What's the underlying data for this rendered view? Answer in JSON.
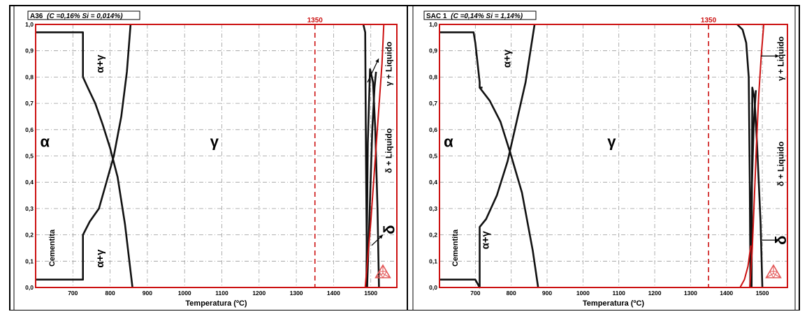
{
  "chart_data": [
    {
      "type": "line",
      "title": "A36",
      "title_detail": "(C =0,16% Si = 0,014%)",
      "xlabel": "Temperatura (ºC)",
      "ylabel": "",
      "xlim": [
        600,
        1570
      ],
      "ylim": [
        0,
        1.0
      ],
      "x_ticks": [
        700,
        800,
        900,
        1000,
        1100,
        1200,
        1300,
        1400,
        1500
      ],
      "y_ticks": [
        0,
        0.1,
        0.2,
        0.3,
        0.4,
        0.5,
        0.6,
        0.7,
        0.8,
        0.9,
        1.0
      ],
      "y_tick_labels": [
        "0,0",
        "0,1",
        "0,2",
        "0,3",
        "0,4",
        "0,5",
        "0,6",
        "0,7",
        "0,8",
        "0,9",
        "1,0"
      ],
      "grid": true,
      "marker_line": {
        "x": 1350,
        "label": "1350",
        "color": "#cc1111"
      },
      "labels": [
        {
          "text": "α",
          "x": 625,
          "y": 0.55,
          "size": 22,
          "rot": 0
        },
        {
          "text": "γ",
          "x": 1080,
          "y": 0.55,
          "size": 22,
          "rot": 0
        },
        {
          "text": "α+γ",
          "x": 775,
          "y": 0.85,
          "size": 15,
          "rot": -90
        },
        {
          "text": "α+γ",
          "x": 775,
          "y": 0.11,
          "size": 15,
          "rot": -90
        },
        {
          "text": "Cementita",
          "x": 645,
          "y": 0.15,
          "size": 11,
          "rot": -90
        },
        {
          "text": "δ",
          "x": 1553,
          "y": 0.22,
          "size": 22,
          "rot": -90
        },
        {
          "text": "δ + Liquido",
          "x": 1550,
          "y": 0.52,
          "size": 12,
          "rot": -90
        },
        {
          "text": "γ + Liquido",
          "x": 1550,
          "y": 0.85,
          "size": 12,
          "rot": -90
        }
      ],
      "series": [
        {
          "color": "#111111",
          "x": [
            600,
            727,
            727
          ],
          "y": [
            0.97,
            0.97,
            0.8
          ]
        },
        {
          "color": "#111111",
          "x": [
            727,
            740,
            760,
            780,
            800,
            820,
            840,
            860
          ],
          "y": [
            0.8,
            0.76,
            0.7,
            0.62,
            0.53,
            0.42,
            0.24,
            0.0
          ]
        },
        {
          "color": "#111111",
          "x": [
            600,
            727,
            727,
            745,
            770,
            790,
            810,
            830,
            845,
            855
          ],
          "y": [
            0.03,
            0.03,
            0.2,
            0.25,
            0.3,
            0.4,
            0.5,
            0.65,
            0.82,
            1.0
          ]
        },
        {
          "color": "#111111",
          "x": [
            1480,
            1485,
            1487,
            1490
          ],
          "y": [
            1.0,
            0.97,
            0.5,
            0.0
          ]
        },
        {
          "color": "#111111",
          "x": [
            1488,
            1492,
            1498,
            1506,
            1512,
            1518,
            1522
          ],
          "y": [
            0.0,
            0.55,
            0.83,
            0.78,
            0.6,
            0.3,
            0.0
          ]
        },
        {
          "color": "#111111",
          "x": [
            1490,
            1496,
            1504,
            1510,
            1514
          ],
          "y": [
            0.0,
            0.25,
            0.6,
            0.76,
            0.82
          ]
        },
        {
          "color": "#cc1111",
          "x": [
            1485,
            1500,
            1515,
            1530,
            1535
          ],
          "y": [
            0.0,
            0.25,
            0.55,
            0.85,
            1.0
          ]
        }
      ]
    },
    {
      "type": "line",
      "title": "SAC 1",
      "title_detail": "(C =0,14% Si = 1,14%)",
      "xlabel": "Temperatura (ºC)",
      "ylabel": "",
      "xlim": [
        600,
        1570
      ],
      "ylim": [
        0,
        1.0
      ],
      "x_ticks": [
        700,
        800,
        900,
        1000,
        1100,
        1200,
        1300,
        1400,
        1500
      ],
      "y_ticks": [
        0,
        0.1,
        0.2,
        0.3,
        0.4,
        0.5,
        0.6,
        0.7,
        0.8,
        0.9,
        1.0
      ],
      "y_tick_labels": [
        "0,0",
        "0,1",
        "0,2",
        "0,3",
        "0,4",
        "0,5",
        "0,6",
        "0,7",
        "0,8",
        "0,9",
        "1,0"
      ],
      "grid": true,
      "marker_line": {
        "x": 1350,
        "label": "1350",
        "color": "#cc1111"
      },
      "labels": [
        {
          "text": "α",
          "x": 625,
          "y": 0.55,
          "size": 22,
          "rot": 0
        },
        {
          "text": "γ",
          "x": 1080,
          "y": 0.55,
          "size": 22,
          "rot": 0
        },
        {
          "text": "α+γ",
          "x": 790,
          "y": 0.87,
          "size": 15,
          "rot": -90
        },
        {
          "text": "α+γ",
          "x": 730,
          "y": 0.18,
          "size": 15,
          "rot": -90
        },
        {
          "text": "Cementita",
          "x": 645,
          "y": 0.15,
          "size": 11,
          "rot": -90
        },
        {
          "text": "δ",
          "x": 1555,
          "y": 0.18,
          "size": 22,
          "rot": -90
        },
        {
          "text": "δ + Liquido",
          "x": 1553,
          "y": 0.47,
          "size": 12,
          "rot": -90
        },
        {
          "text": "γ + Liquido",
          "x": 1553,
          "y": 0.87,
          "size": 12,
          "rot": -90
        }
      ],
      "series": [
        {
          "color": "#111111",
          "x": [
            600,
            695,
            700,
            712,
            712,
            720
          ],
          "y": [
            0.97,
            0.97,
            0.93,
            0.78,
            0.76,
            0.76
          ]
        },
        {
          "color": "#111111",
          "x": [
            712,
            740,
            770,
            800,
            830,
            860,
            875
          ],
          "y": [
            0.76,
            0.71,
            0.63,
            0.5,
            0.36,
            0.14,
            0.0
          ]
        },
        {
          "color": "#111111",
          "x": [
            600,
            700,
            712,
            712,
            730,
            760,
            790,
            810,
            840,
            865
          ],
          "y": [
            0.03,
            0.03,
            0.0,
            0.23,
            0.26,
            0.35,
            0.48,
            0.6,
            0.78,
            1.0
          ]
        },
        {
          "color": "#111111",
          "x": [
            1430,
            1445,
            1455,
            1462,
            1465,
            1467
          ],
          "y": [
            1.0,
            0.98,
            0.93,
            0.8,
            0.4,
            0.0
          ]
        },
        {
          "color": "#111111",
          "x": [
            1470,
            1472,
            1478,
            1485,
            1495,
            1500
          ],
          "y": [
            0.0,
            0.76,
            0.72,
            0.55,
            0.25,
            0.0
          ]
        },
        {
          "color": "#111111",
          "x": [
            1466,
            1470,
            1476,
            1482
          ],
          "y": [
            0.0,
            0.35,
            0.62,
            0.75
          ]
        },
        {
          "color": "#cc1111",
          "x": [
            1465,
            1472,
            1478,
            1484,
            1490,
            1497,
            1504
          ],
          "y": [
            0.0,
            0.15,
            0.35,
            0.55,
            0.73,
            0.88,
            1.0
          ]
        },
        {
          "color": "#cc1111",
          "x": [
            1438,
            1450,
            1460,
            1468
          ],
          "y": [
            0.0,
            0.03,
            0.08,
            0.16
          ]
        }
      ]
    }
  ]
}
